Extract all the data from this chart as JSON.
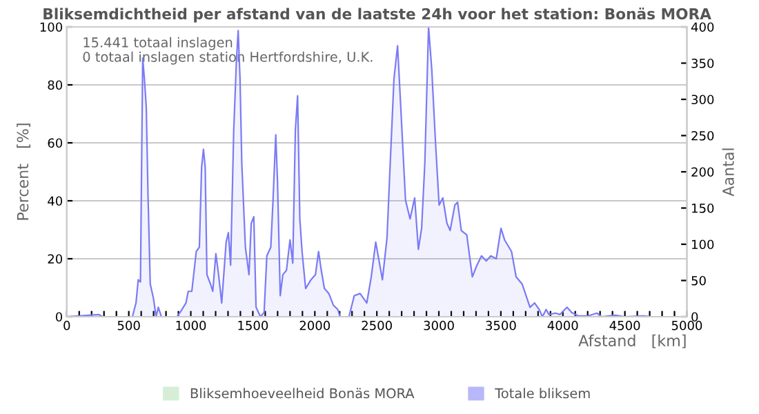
{
  "chart_data": {
    "type": "area",
    "title": "Bliksemdichtheid per afstand van de laatste 24h voor het station: Bonäs MORA",
    "xlabel": "Afstand   [km]",
    "ylabel": "Percent   [%]",
    "y2label": "Aantal",
    "annotations": [
      "15.441 totaal inslagen",
      "0 totaal inslagen station Hertfordshire, U.K."
    ],
    "series": [
      {
        "name": "Bliksemhoeveelheid Bonäs MORA",
        "color": "#b3e0b3"
      },
      {
        "name": "Totale bliksem",
        "color": "#7b7bf5",
        "axis": "y2",
        "x": [
          0,
          259,
          288,
          529,
          558,
          576,
          594,
          612,
          626,
          641,
          655,
          673,
          698,
          720,
          738,
          763,
          889,
          914,
          961,
          979,
          1008,
          1044,
          1069,
          1087,
          1102,
          1116,
          1130,
          1159,
          1177,
          1202,
          1224,
          1249,
          1285,
          1303,
          1321,
          1346,
          1368,
          1382,
          1397,
          1411,
          1440,
          1469,
          1487,
          1508,
          1526,
          1562,
          1591,
          1613,
          1645,
          1663,
          1685,
          1699,
          1721,
          1742,
          1771,
          1800,
          1822,
          1843,
          1861,
          1879,
          1897,
          1926,
          1969,
          2005,
          2030,
          2052,
          2077,
          2113,
          2149,
          2185,
          2203,
          2275,
          2318,
          2365,
          2419,
          2455,
          2491,
          2545,
          2582,
          2608,
          2638,
          2667,
          2693,
          2731,
          2768,
          2805,
          2835,
          2861,
          2887,
          2917,
          2943,
          2972,
          3002,
          3032,
          3065,
          3091,
          3129,
          3151,
          3181,
          3225,
          3270,
          3307,
          3344,
          3382,
          3419,
          3463,
          3501,
          3530,
          3586,
          3623,
          3672,
          3709,
          3735,
          3772,
          3809,
          3835,
          3865,
          3888,
          3940,
          3977,
          4033,
          4070,
          4126,
          4200,
          4274,
          4312,
          4423,
          4498,
          4646,
          4721,
          5000
        ],
        "values": [
          0,
          3,
          0,
          0,
          19,
          51,
          48,
          357,
          328,
          289,
          167,
          45,
          26,
          0,
          13,
          0,
          0,
          6,
          19,
          35,
          35,
          90,
          96,
          206,
          231,
          206,
          58,
          45,
          35,
          87,
          58,
          19,
          103,
          116,
          71,
          257,
          354,
          395,
          328,
          212,
          96,
          58,
          129,
          138,
          13,
          0,
          6,
          84,
          96,
          161,
          251,
          187,
          29,
          58,
          64,
          106,
          74,
          257,
          305,
          135,
          90,
          39,
          51,
          58,
          90,
          64,
          39,
          32,
          16,
          10,
          0,
          0,
          29,
          32,
          19,
          55,
          103,
          51,
          109,
          212,
          328,
          374,
          289,
          161,
          135,
          164,
          93,
          122,
          212,
          400,
          341,
          244,
          154,
          164,
          129,
          119,
          154,
          158,
          119,
          113,
          55,
          71,
          84,
          77,
          84,
          80,
          122,
          106,
          90,
          55,
          45,
          26,
          13,
          19,
          10,
          0,
          10,
          3,
          5,
          3,
          13,
          6,
          1,
          1,
          5,
          0,
          2,
          0,
          1,
          0,
          0
        ]
      }
    ],
    "xlim": [
      0,
      5000
    ],
    "xticks": [
      0,
      {
        "value": 100,
        "label": null
      },
      {
        "value": 200,
        "label": null
      },
      {
        "value": 300,
        "label": null
      },
      {
        "value": 400,
        "label": null
      },
      500,
      {
        "value": 600,
        "label": null
      },
      {
        "value": 700,
        "label": null
      },
      {
        "value": 800,
        "label": null
      },
      {
        "value": 900,
        "label": null
      },
      1000,
      {
        "value": 1100,
        "label": null
      },
      {
        "value": 1200,
        "label": null
      },
      {
        "value": 1300,
        "label": null
      },
      {
        "value": 1400,
        "label": null
      },
      1500,
      {
        "value": 1600,
        "label": null
      },
      {
        "value": 1700,
        "label": null
      },
      {
        "value": 1800,
        "label": null
      },
      {
        "value": 1900,
        "label": null
      },
      2000,
      {
        "value": 2100,
        "label": null
      },
      {
        "value": 2200,
        "label": null
      },
      {
        "value": 2300,
        "label": null
      },
      {
        "value": 2400,
        "label": null
      },
      2500,
      {
        "value": 2600,
        "label": null
      },
      {
        "value": 2700,
        "label": null
      },
      {
        "value": 2800,
        "label": null
      },
      {
        "value": 2900,
        "label": null
      },
      3000,
      {
        "value": 3100,
        "label": null
      },
      {
        "value": 3200,
        "label": null
      },
      {
        "value": 3300,
        "label": null
      },
      {
        "value": 3400,
        "label": null
      },
      3500,
      {
        "value": 3600,
        "label": null
      },
      {
        "value": 3700,
        "label": null
      },
      {
        "value": 3800,
        "label": null
      },
      {
        "value": 3900,
        "label": null
      },
      4000,
      {
        "value": 4100,
        "label": null
      },
      {
        "value": 4200,
        "label": null
      },
      {
        "value": 4300,
        "label": null
      },
      {
        "value": 4400,
        "label": null
      },
      4500,
      {
        "value": 4600,
        "label": null
      },
      {
        "value": 4700,
        "label": null
      },
      {
        "value": 4800,
        "label": null
      },
      {
        "value": 4900,
        "label": null
      },
      5000
    ],
    "ylim": [
      0,
      100
    ],
    "yticks": [
      0,
      20,
      40,
      60,
      80,
      100
    ],
    "y2lim": [
      0,
      400
    ],
    "y2ticks": [
      0,
      50,
      100,
      150,
      200,
      250,
      300,
      350,
      400
    ],
    "grid": "y",
    "legend": "bottom"
  }
}
